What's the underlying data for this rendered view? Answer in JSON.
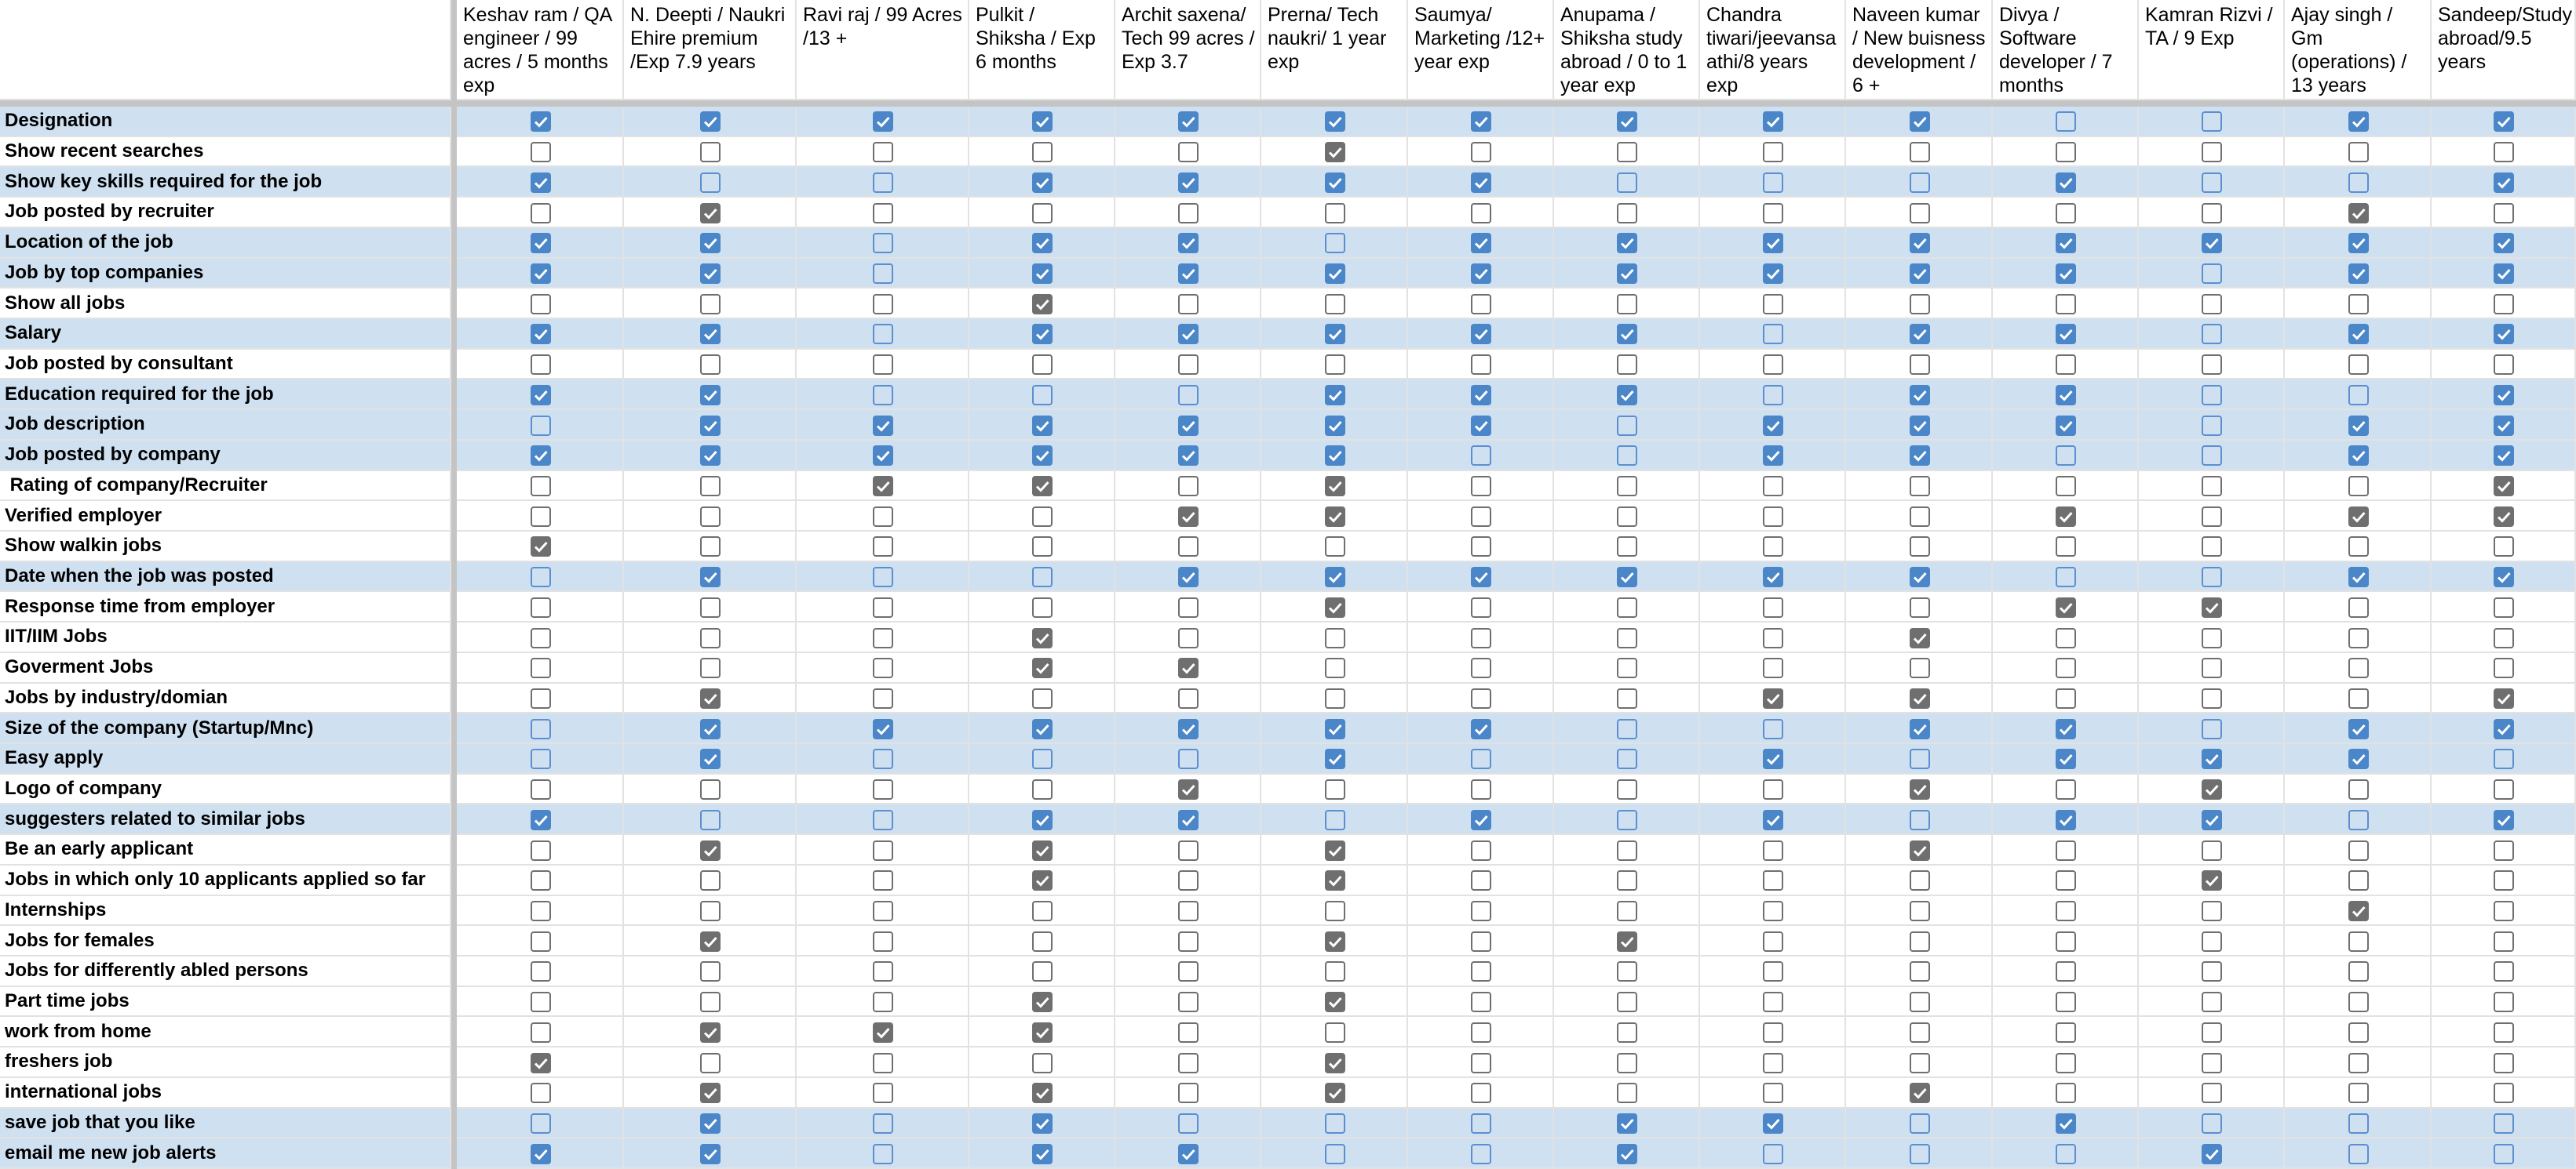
{
  "columns": [
    "Keshav ram / QA engineer / 99 acres / 5 months exp",
    "N. Deepti / Naukri Ehire premium /Exp 7.9 years",
    "Ravi raj / 99 Acres /13 +",
    "Pulkit / Shiksha / Exp 6 months",
    "Archit saxena/ Tech 99 acres / Exp 3.7",
    "Prerna/ Tech naukri/ 1 year exp",
    "Saumya/ Marketing /12+ year exp",
    "Anupama / Shiksha study abroad / 0 to 1 year exp",
    "Chandra tiwari/jeevansa athi/8 years exp",
    "Naveen kumar / New buisness development / 6 +",
    "Divya / Software developer / 7 months",
    "Kamran Rizvi / TA / 9 Exp",
    "Ajay singh / Gm (operations) / 13 years",
    "Sandeep/Study abroad/9.5 years"
  ],
  "rows": [
    {
      "label": "Designation",
      "highlight": true,
      "checks": [
        true,
        true,
        true,
        true,
        true,
        true,
        true,
        true,
        true,
        true,
        false,
        false,
        true,
        true
      ]
    },
    {
      "label": "Show recent searches",
      "highlight": false,
      "checks": [
        false,
        false,
        false,
        false,
        false,
        true,
        false,
        false,
        false,
        false,
        false,
        false,
        false,
        false
      ]
    },
    {
      "label": "Show key skills required for the job",
      "highlight": true,
      "checks": [
        true,
        false,
        false,
        true,
        true,
        true,
        true,
        false,
        false,
        false,
        true,
        false,
        false,
        true
      ]
    },
    {
      "label": "Job posted by recruiter",
      "highlight": false,
      "checks": [
        false,
        true,
        false,
        false,
        false,
        false,
        false,
        false,
        false,
        false,
        false,
        false,
        true,
        false
      ]
    },
    {
      "label": "Location of the job",
      "highlight": true,
      "checks": [
        true,
        true,
        false,
        true,
        true,
        false,
        true,
        true,
        true,
        true,
        true,
        true,
        true,
        true
      ]
    },
    {
      "label": "Job by top companies",
      "highlight": true,
      "checks": [
        true,
        true,
        false,
        true,
        true,
        true,
        true,
        true,
        true,
        true,
        true,
        false,
        true,
        true
      ]
    },
    {
      "label": "Show all jobs",
      "highlight": false,
      "checks": [
        false,
        false,
        false,
        true,
        false,
        false,
        false,
        false,
        false,
        false,
        false,
        false,
        false,
        false
      ]
    },
    {
      "label": "Salary",
      "highlight": true,
      "checks": [
        true,
        true,
        false,
        true,
        true,
        true,
        true,
        true,
        false,
        true,
        true,
        false,
        true,
        true
      ]
    },
    {
      "label": "Job posted by consultant",
      "highlight": false,
      "checks": [
        false,
        false,
        false,
        false,
        false,
        false,
        false,
        false,
        false,
        false,
        false,
        false,
        false,
        false
      ]
    },
    {
      "label": "Education required for the job",
      "highlight": true,
      "checks": [
        true,
        true,
        false,
        false,
        false,
        true,
        true,
        true,
        false,
        true,
        true,
        false,
        false,
        true
      ]
    },
    {
      "label": "Job description",
      "highlight": true,
      "checks": [
        false,
        true,
        true,
        true,
        true,
        true,
        true,
        false,
        true,
        true,
        true,
        false,
        true,
        true
      ]
    },
    {
      "label": "Job posted by company",
      "highlight": true,
      "checks": [
        true,
        true,
        true,
        true,
        true,
        true,
        false,
        false,
        true,
        true,
        false,
        false,
        true,
        true
      ]
    },
    {
      "label": " Rating of company/Recruiter",
      "highlight": false,
      "checks": [
        false,
        false,
        true,
        true,
        false,
        true,
        false,
        false,
        false,
        false,
        false,
        false,
        false,
        true
      ]
    },
    {
      "label": "Verified employer",
      "highlight": false,
      "checks": [
        false,
        false,
        false,
        false,
        true,
        true,
        false,
        false,
        false,
        false,
        true,
        false,
        true,
        true
      ]
    },
    {
      "label": "Show walkin jobs",
      "highlight": false,
      "checks": [
        true,
        false,
        false,
        false,
        false,
        false,
        false,
        false,
        false,
        false,
        false,
        false,
        false,
        false
      ]
    },
    {
      "label": "Date when the job was posted",
      "highlight": true,
      "checks": [
        false,
        true,
        false,
        false,
        true,
        true,
        true,
        true,
        true,
        true,
        false,
        false,
        true,
        true
      ]
    },
    {
      "label": "Response time from employer",
      "highlight": false,
      "checks": [
        false,
        false,
        false,
        false,
        false,
        true,
        false,
        false,
        false,
        false,
        true,
        true,
        false,
        false
      ]
    },
    {
      "label": "IIT/IIM Jobs",
      "highlight": false,
      "checks": [
        false,
        false,
        false,
        true,
        false,
        false,
        false,
        false,
        false,
        true,
        false,
        false,
        false,
        false
      ]
    },
    {
      "label": "Goverment Jobs",
      "highlight": false,
      "checks": [
        false,
        false,
        false,
        true,
        true,
        false,
        false,
        false,
        false,
        false,
        false,
        false,
        false,
        false
      ]
    },
    {
      "label": "Jobs by industry/domian",
      "highlight": false,
      "checks": [
        false,
        true,
        false,
        false,
        false,
        false,
        false,
        false,
        true,
        true,
        false,
        false,
        false,
        true
      ]
    },
    {
      "label": "Size of the company (Startup/Mnc)",
      "highlight": true,
      "checks": [
        false,
        true,
        true,
        true,
        true,
        true,
        true,
        false,
        false,
        true,
        true,
        false,
        true,
        true
      ]
    },
    {
      "label": "Easy apply",
      "highlight": true,
      "checks": [
        false,
        true,
        false,
        false,
        false,
        true,
        false,
        false,
        true,
        false,
        true,
        true,
        true,
        false
      ]
    },
    {
      "label": "Logo of company",
      "highlight": false,
      "checks": [
        false,
        false,
        false,
        false,
        true,
        false,
        false,
        false,
        false,
        true,
        false,
        true,
        false,
        false
      ]
    },
    {
      "label": "suggesters related to similar jobs",
      "highlight": true,
      "checks": [
        true,
        false,
        false,
        true,
        true,
        false,
        true,
        false,
        true,
        false,
        true,
        true,
        false,
        true
      ]
    },
    {
      "label": "Be an early applicant",
      "highlight": false,
      "checks": [
        false,
        true,
        false,
        true,
        false,
        true,
        false,
        false,
        false,
        true,
        false,
        false,
        false,
        false
      ]
    },
    {
      "label": "Jobs in which only 10 applicants applied so far",
      "highlight": false,
      "checks": [
        false,
        false,
        false,
        true,
        false,
        true,
        false,
        false,
        false,
        false,
        false,
        true,
        false,
        false
      ]
    },
    {
      "label": "Internships",
      "highlight": false,
      "checks": [
        false,
        false,
        false,
        false,
        false,
        false,
        false,
        false,
        false,
        false,
        false,
        false,
        true,
        false
      ]
    },
    {
      "label": "Jobs for females",
      "highlight": false,
      "checks": [
        false,
        true,
        false,
        false,
        false,
        true,
        false,
        true,
        false,
        false,
        false,
        false,
        false,
        false
      ]
    },
    {
      "label": "Jobs for differently abled persons",
      "highlight": false,
      "checks": [
        false,
        false,
        false,
        false,
        false,
        false,
        false,
        false,
        false,
        false,
        false,
        false,
        false,
        false
      ]
    },
    {
      "label": "Part time jobs",
      "highlight": false,
      "checks": [
        false,
        false,
        false,
        true,
        false,
        true,
        false,
        false,
        false,
        false,
        false,
        false,
        false,
        false
      ]
    },
    {
      "label": "work from home",
      "highlight": false,
      "checks": [
        false,
        true,
        true,
        true,
        false,
        false,
        false,
        false,
        false,
        false,
        false,
        false,
        false,
        false
      ]
    },
    {
      "label": "freshers job",
      "highlight": false,
      "checks": [
        true,
        false,
        false,
        false,
        false,
        true,
        false,
        false,
        false,
        false,
        false,
        false,
        false,
        false
      ]
    },
    {
      "label": "international jobs",
      "highlight": false,
      "checks": [
        false,
        true,
        false,
        true,
        false,
        true,
        false,
        false,
        false,
        true,
        false,
        false,
        false,
        false
      ]
    },
    {
      "label": "save job that you like",
      "highlight": true,
      "checks": [
        false,
        true,
        false,
        true,
        false,
        false,
        false,
        true,
        true,
        false,
        true,
        false,
        false,
        false
      ]
    },
    {
      "label": "email me new job alerts",
      "highlight": true,
      "checks": [
        true,
        true,
        false,
        true,
        true,
        false,
        false,
        true,
        false,
        false,
        false,
        true,
        false,
        false
      ]
    }
  ]
}
